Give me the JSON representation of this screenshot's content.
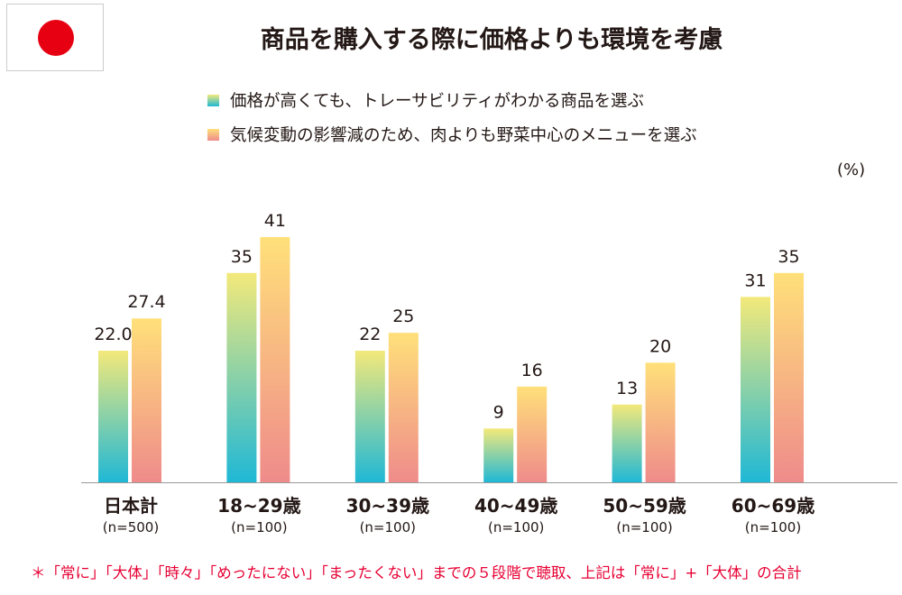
{
  "flag": "japan-flag",
  "chart_data": {
    "type": "bar",
    "title": "商品を購入する際に価格よりも環境を考慮",
    "unit_label": "(%)",
    "categories": [
      "日本計",
      "18~29歳",
      "30~39歳",
      "40~49歳",
      "50~59歳",
      "60~69歳"
    ],
    "sample_sizes": [
      "(n=500)",
      "(n=100)",
      "(n=100)",
      "(n=100)",
      "(n=100)",
      "(n=100)"
    ],
    "series": [
      {
        "name": "価格が高くても、トレーサビリティがわかる商品を選ぶ",
        "values": [
          22.0,
          35,
          22,
          9,
          13,
          31
        ],
        "labels": [
          "22.0",
          "35",
          "22",
          "9",
          "13",
          "31"
        ],
        "colors": [
          "#f3e97a",
          "#1fb8d6"
        ]
      },
      {
        "name": "気候変動の影響減のため、肉よりも野菜中心のメニューを選ぶ",
        "values": [
          27.4,
          41,
          25,
          16,
          20,
          35
        ],
        "labels": [
          "27.4",
          "41",
          "25",
          "16",
          "20",
          "35"
        ],
        "colors": [
          "#ffe07a",
          "#ef8b8b"
        ]
      }
    ],
    "ylim": [
      0,
      41
    ],
    "legend": "top"
  },
  "footnote": "＊「常に」「大体」「時々」「めったにない」「まったくない」までの５段階で聴取、上記は「常に」+「大体」の合計"
}
